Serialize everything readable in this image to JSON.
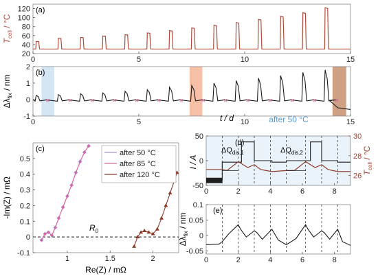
{
  "figure": {
    "panels": {
      "a": "(a)",
      "b": "(b)",
      "c": "(c)",
      "d": "(d)",
      "e": "(e)"
    }
  },
  "colors": {
    "tcell": "#b0493a",
    "black": "#1a1a1a",
    "blue_band": "#cfe2f3",
    "orange_band": "#f6b89c",
    "brown_band": "#c99778",
    "purple": "#b090d8",
    "pink": "#d9669a",
    "brown_series": "#8b3a28",
    "d_right_axis": "#a0412d",
    "d_annotation": "#5b9bd5",
    "panel_bg": "#eaf2fa"
  },
  "chart_data": [
    {
      "id": "a",
      "type": "line",
      "ylabel_main": "T",
      "ylabel_sub": "cell",
      "ylabel_unit": " / °C",
      "xlim": [
        0,
        15
      ],
      "ylim": [
        20,
        130
      ],
      "xticks": [
        0,
        5,
        10,
        15
      ],
      "yticks": [
        20,
        40,
        60,
        80,
        100,
        120
      ],
      "baseline": 30,
      "pulses": {
        "x": [
          0.15,
          1.2,
          2.25,
          3.3,
          4.35,
          5.4,
          6.45,
          7.5,
          8.55,
          9.6,
          10.65,
          11.7,
          12.75,
          13.8
        ],
        "peak": [
          47,
          54,
          56,
          59,
          62,
          66,
          71,
          77,
          83,
          89,
          96,
          103,
          111,
          122
        ]
      },
      "series": [
        {
          "color": "#b0493a"
        }
      ]
    },
    {
      "id": "b",
      "type": "line",
      "ylabel_main": "Δλ",
      "ylabel_sub": "fix",
      "ylabel_unit": " / nm",
      "xlim": [
        0,
        15
      ],
      "ylim": [
        -1,
        2
      ],
      "xticks": [
        0,
        5,
        10,
        15
      ],
      "yticks": [
        -1,
        0,
        1,
        2
      ],
      "pulses": {
        "x": [
          0.15,
          1.2,
          2.25,
          3.3,
          4.35,
          5.4,
          6.45,
          7.5,
          8.55,
          9.6,
          10.65,
          11.7,
          12.75,
          13.8
        ],
        "peak": [
          0.25,
          0.3,
          0.35,
          0.4,
          0.5,
          0.6,
          0.75,
          0.85,
          1.0,
          1.15,
          1.3,
          1.45,
          1.65,
          1.8
        ]
      },
      "drift_after": 14.0,
      "drift_to": -0.5,
      "bands": [
        {
          "range": [
            0.4,
            1.0
          ],
          "color": "#cfe2f3"
        },
        {
          "range": [
            7.4,
            8.0
          ],
          "color": "#f6b89c"
        },
        {
          "range": [
            14.15,
            14.8
          ],
          "color": "#c99778"
        }
      ]
    },
    {
      "id": "c",
      "type": "line",
      "xlabel": "Re(Z) / mΩ",
      "ylabel": "-Im(Z) / mΩ",
      "xlim": [
        0.6,
        2.3
      ],
      "ylim": [
        -0.1,
        0.6
      ],
      "xticks": [
        1,
        1.5,
        2
      ],
      "yticks": [
        -0.1,
        0,
        0.1,
        0.2,
        0.3,
        0.4,
        0.5
      ],
      "annotation": "R",
      "annotation_sub": "0",
      "series": [
        {
          "name": "after   50 °C",
          "marker": "diamond",
          "color": "#b090d8",
          "x": [
            0.7,
            0.74,
            0.78,
            0.82,
            0.86,
            0.9,
            0.95,
            1.0,
            1.05,
            1.1,
            1.15,
            1.2,
            1.25
          ],
          "y": [
            -0.02,
            0.02,
            0.03,
            0.01,
            0.06,
            0.12,
            0.19,
            0.26,
            0.33,
            0.41,
            0.48,
            0.54,
            0.58
          ]
        },
        {
          "name": "after   85 °C",
          "marker": "dot",
          "color": "#d9669a",
          "x": [
            0.7,
            0.74,
            0.78,
            0.82,
            0.86,
            0.9,
            0.95,
            1.0,
            1.05,
            1.1,
            1.15,
            1.2,
            1.25
          ],
          "y": [
            -0.02,
            0.02,
            0.03,
            0.01,
            0.06,
            0.12,
            0.19,
            0.26,
            0.33,
            0.41,
            0.48,
            0.54,
            0.58
          ]
        },
        {
          "name": "after 120 °C",
          "marker": "triangle",
          "color": "#8b3a28",
          "x": [
            1.78,
            1.82,
            1.86,
            1.9,
            1.95,
            2.0,
            2.05,
            2.1,
            2.15,
            2.2,
            2.25,
            2.28
          ],
          "y": [
            -0.06,
            0.0,
            0.03,
            0.04,
            0.03,
            0.02,
            0.05,
            0.12,
            0.2,
            0.28,
            0.36,
            0.41
          ]
        }
      ],
      "legend_position": "top-right"
    },
    {
      "id": "d",
      "type": "line",
      "title": "after 50 °C",
      "xlabel_top": "t / d",
      "ylabel": "I / A",
      "ylabel2_main": "T",
      "ylabel2_sub": "cell",
      "ylabel2_unit": " / °C",
      "xlim": [
        0,
        9
      ],
      "ylim": [
        -50,
        50
      ],
      "y2lim": [
        25,
        30
      ],
      "xticks": [
        0,
        2,
        4,
        6,
        8
      ],
      "yticks": [
        -50,
        0,
        50
      ],
      "y2ticks": [
        26,
        28,
        30
      ],
      "annot1_main": "ΔQ",
      "annot1_sub": "dis,1",
      "annot2_main": "ΔQ",
      "annot2_sub": "dis,2",
      "dashed_x": [
        1.0,
        2.0,
        3.0,
        4.0,
        5.0,
        6.2,
        7.2,
        8.2
      ],
      "current": {
        "x": [
          0,
          1.0,
          1.0,
          2.2,
          2.2,
          3.0,
          3.0,
          4.1,
          4.1,
          5.0,
          5.0,
          6.5,
          6.5,
          7.2,
          7.2,
          8.2,
          8.2,
          9
        ],
        "y": [
          -40,
          -40,
          -3,
          -3,
          38,
          38,
          0,
          0,
          -3,
          -3,
          0,
          0,
          38,
          38,
          0,
          0,
          -3,
          -3
        ]
      },
      "temperature": {
        "x": [
          0,
          1.0,
          1.3,
          2.0,
          2.6,
          3.0,
          3.4,
          4.1,
          5.0,
          5.5,
          6.2,
          6.8,
          7.2,
          7.6,
          8.2,
          9
        ],
        "y": [
          26.6,
          26.6,
          26.5,
          27.4,
          26.8,
          27.1,
          26.6,
          26.4,
          26.5,
          26.5,
          27.4,
          26.8,
          27.1,
          26.6,
          26.4,
          26.4
        ]
      }
    },
    {
      "id": "e",
      "type": "line",
      "ylabel_main": "Δλ",
      "ylabel_sub": "fix",
      "ylabel_unit": " / nm",
      "xlim": [
        0,
        9
      ],
      "ylim": [
        -0.06,
        0.1
      ],
      "xticks": [
        0,
        2,
        4,
        6,
        8
      ],
      "yticks": [
        -0.05,
        0,
        0.05,
        0.1
      ],
      "dashed_x": [
        1.0,
        2.0,
        3.0,
        4.0,
        5.0,
        6.2,
        7.2,
        8.2
      ],
      "x": [
        0,
        0.8,
        1.0,
        1.4,
        2.0,
        2.15,
        2.5,
        3.0,
        3.15,
        3.5,
        4.1,
        4.5,
        5.0,
        5.6,
        6.2,
        6.35,
        6.7,
        7.2,
        7.35,
        7.7,
        8.2,
        8.5,
        9
      ],
      "y": [
        -0.03,
        -0.028,
        -0.02,
        0.005,
        0.035,
        0.02,
        -0.005,
        0.015,
        0.01,
        -0.012,
        0.02,
        -0.015,
        -0.03,
        -0.01,
        0.035,
        0.02,
        -0.005,
        0.015,
        0.01,
        -0.012,
        0.02,
        -0.02,
        -0.032
      ]
    }
  ]
}
